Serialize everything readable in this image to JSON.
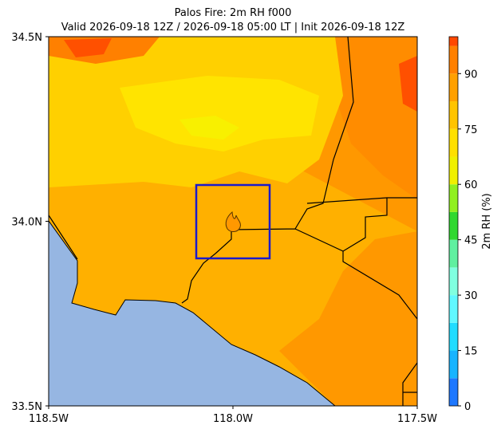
{
  "map": {
    "title": "Palos Fire: 2m RH f000",
    "subtitle": "Valid 2026-09-18 12Z / 2026-09-18 05:00 LT | Init 2026-09-18 12Z",
    "xlim": [
      -118.5,
      -117.5
    ],
    "xticks": [
      {
        "value": -118.5,
        "label": "118.5W"
      },
      {
        "value": -118.0,
        "label": "118.0W"
      },
      {
        "value": -117.5,
        "label": "117.5W"
      }
    ],
    "ylim": [
      33.5,
      34.5
    ],
    "yticks": [
      {
        "value": 33.5,
        "label": "33.5N"
      },
      {
        "value": 34.0,
        "label": "34.0N"
      },
      {
        "value": 34.5,
        "label": "34.5N"
      }
    ],
    "colorbar": {
      "label": "2m RH (%)",
      "lim": [
        0,
        100
      ],
      "ticks": [
        0,
        15,
        30,
        45,
        60,
        75,
        90
      ],
      "bounds": [
        0,
        7.5,
        15,
        22.5,
        30,
        37.5,
        45,
        52.5,
        60,
        67.5,
        75,
        82.5,
        90,
        97.5,
        100
      ],
      "colors": [
        "#1e78ff",
        "#18b4ff",
        "#20dcff",
        "#60f8ff",
        "#80ffe0",
        "#60f0a0",
        "#30d830",
        "#90f020",
        "#f0f000",
        "#ffe000",
        "#ffc400",
        "#ffa000",
        "#ff8000",
        "#ff4800"
      ]
    }
  }
}
